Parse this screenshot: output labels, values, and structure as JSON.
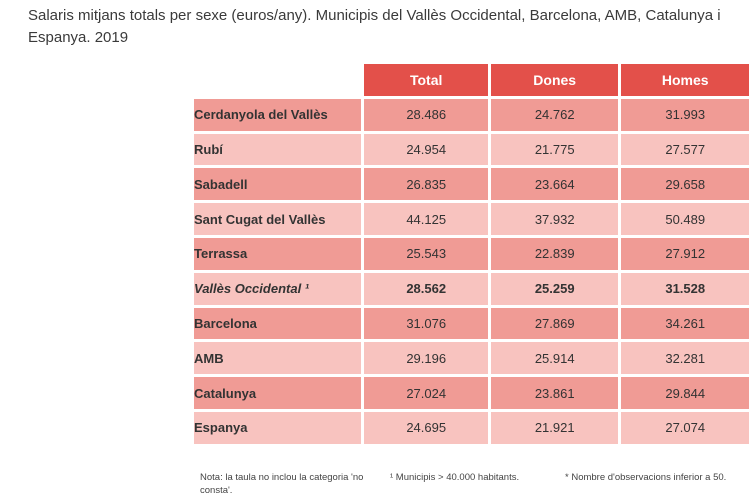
{
  "title": "Salaris mitjans totals per sexe (euros/any). Municipis del Vallès Occidental, Barcelona, AMB, Catalunya i Espanya. 2019",
  "table": {
    "headers": [
      "Total",
      "Dones",
      "Homes"
    ],
    "rows": [
      {
        "name": "Cerdanyola del Vallès",
        "values": [
          "28.486",
          "24.762",
          "31.993"
        ]
      },
      {
        "name": "Rubí",
        "values": [
          "24.954",
          "21.775",
          "27.577"
        ]
      },
      {
        "name": "Sabadell",
        "values": [
          "26.835",
          "23.664",
          "29.658"
        ]
      },
      {
        "name": "Sant Cugat del Vallès",
        "values": [
          "44.125",
          "37.932",
          "50.489"
        ]
      },
      {
        "name": "Terrassa",
        "values": [
          "25.543",
          "22.839",
          "27.912"
        ]
      },
      {
        "name": "Vallès Occidental ¹",
        "values": [
          "28.562",
          "25.259",
          "31.528"
        ]
      },
      {
        "name": "Barcelona",
        "values": [
          "31.076",
          "27.869",
          "34.261"
        ]
      },
      {
        "name": "AMB",
        "values": [
          "29.196",
          "25.914",
          "32.281"
        ]
      },
      {
        "name": "Catalunya",
        "values": [
          "27.024",
          "23.861",
          "29.844"
        ]
      },
      {
        "name": "Espanya",
        "values": [
          "24.695",
          "21.921",
          "27.074"
        ]
      }
    ]
  },
  "footnotes": {
    "note": "Nota: la taula no inclou la categoria 'no consta'.",
    "municipis": "¹ Municipis > 40.000 habitants.",
    "observacions": "* Nombre d'observacions inferior a 50."
  },
  "colors": {
    "header": "#e3504a",
    "row_dark": "#f09b95",
    "row_light": "#f8c3bf"
  }
}
